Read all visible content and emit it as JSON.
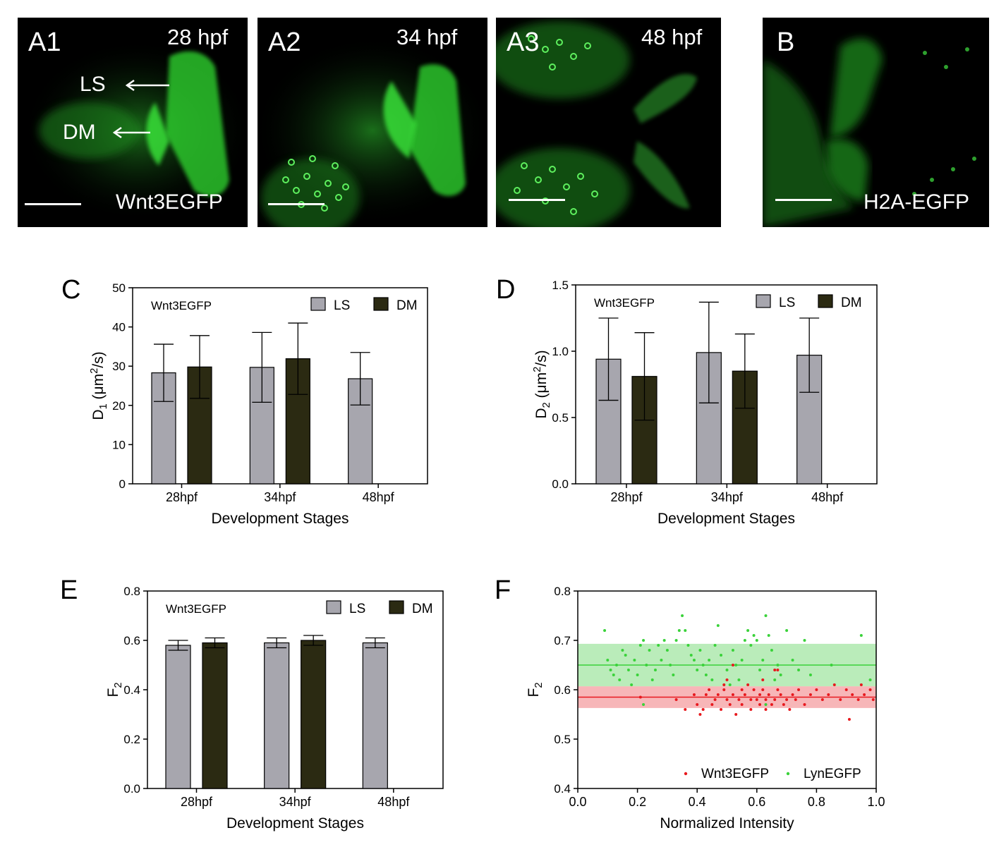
{
  "images": [
    {
      "label": "A1",
      "stage": "28 hpf",
      "marker": "Wnt3EGFP",
      "ls": "LS",
      "dm": "DM"
    },
    {
      "label": "A2",
      "stage": "34 hpf"
    },
    {
      "label": "A3",
      "stage": "48 hpf"
    },
    {
      "label": "B",
      "marker": "H2A-EGFP"
    }
  ],
  "colors": {
    "ls_bar": "#A7A6AE",
    "dm_bar": "#2B2A12",
    "wnt3": "#E8191E",
    "lyn": "#3AD23A",
    "fluorescence": "#2CC82C"
  },
  "chart_data": [
    {
      "panel": "C",
      "type": "bar",
      "inset_label": "Wnt3EGFP",
      "categories": [
        "28hpf",
        "34hpf",
        "48hpf"
      ],
      "series": [
        {
          "name": "LS",
          "values": [
            28.3,
            29.7,
            26.8
          ],
          "errors": [
            7.3,
            8.9,
            6.7
          ]
        },
        {
          "name": "DM",
          "values": [
            29.8,
            31.9,
            null
          ],
          "errors": [
            8.0,
            9.1,
            null
          ]
        }
      ],
      "xlabel": "Development Stages",
      "ylabel": {
        "base": "D",
        "sub": "1",
        "rest": " (μm",
        "sup": "2",
        "end": "/s)"
      },
      "ylim": [
        0,
        50
      ],
      "yticks": [
        "0",
        "10",
        "20",
        "30",
        "40",
        "50"
      ],
      "legend": "top-right"
    },
    {
      "panel": "D",
      "type": "bar",
      "inset_label": "Wnt3EGFP",
      "categories": [
        "28hpf",
        "34hpf",
        "48hpf"
      ],
      "series": [
        {
          "name": "LS",
          "values": [
            0.94,
            0.99,
            0.97
          ],
          "errors": [
            0.31,
            0.38,
            0.28
          ]
        },
        {
          "name": "DM",
          "values": [
            0.81,
            0.85,
            null
          ],
          "errors": [
            0.33,
            0.28,
            null
          ]
        }
      ],
      "xlabel": "Development Stages",
      "ylabel": {
        "base": "D",
        "sub": "2",
        "rest": " (μm",
        "sup": "2",
        "end": "/s)"
      },
      "ylim": [
        0,
        1.5
      ],
      "yticks": [
        "0.0",
        "0.5",
        "1.0",
        "1.5"
      ],
      "legend": "top-right"
    },
    {
      "panel": "E",
      "type": "bar",
      "inset_label": "Wnt3EGFP",
      "categories": [
        "28hpf",
        "34hpf",
        "48hpf"
      ],
      "series": [
        {
          "name": "LS",
          "values": [
            0.58,
            0.59,
            0.59
          ],
          "errors": [
            0.02,
            0.02,
            0.02
          ]
        },
        {
          "name": "DM",
          "values": [
            0.59,
            0.6,
            null
          ],
          "errors": [
            0.02,
            0.02,
            null
          ]
        }
      ],
      "xlabel": "Development Stages",
      "ylabel": {
        "base": "F",
        "sub": "2"
      },
      "ylim": [
        0,
        0.8
      ],
      "yticks": [
        "0.0",
        "0.2",
        "0.4",
        "0.6",
        "0.8"
      ],
      "legend": "top-right"
    },
    {
      "panel": "F",
      "type": "scatter",
      "xlabel": "Normalized Intensity",
      "ylabel": {
        "base": "F",
        "sub": "2"
      },
      "xlim": [
        0,
        1
      ],
      "ylim": [
        0.4,
        0.8
      ],
      "xticks": [
        "0.0",
        "0.2",
        "0.4",
        "0.6",
        "0.8",
        "1.0"
      ],
      "yticks": [
        "0.4",
        "0.5",
        "0.6",
        "0.7",
        "0.8"
      ],
      "series": [
        {
          "name": "Wnt3EGFP",
          "mean": 0.585,
          "band": [
            0.563,
            0.607
          ],
          "points": [
            [
              0.21,
              0.585
            ],
            [
              0.33,
              0.58
            ],
            [
              0.36,
              0.56
            ],
            [
              0.39,
              0.59
            ],
            [
              0.4,
              0.57
            ],
            [
              0.41,
              0.55
            ],
            [
              0.42,
              0.56
            ],
            [
              0.43,
              0.59
            ],
            [
              0.44,
              0.6
            ],
            [
              0.45,
              0.57
            ],
            [
              0.46,
              0.58
            ],
            [
              0.47,
              0.59
            ],
            [
              0.48,
              0.56
            ],
            [
              0.49,
              0.6
            ],
            [
              0.5,
              0.62
            ],
            [
              0.5,
              0.58
            ],
            [
              0.51,
              0.57
            ],
            [
              0.52,
              0.59
            ],
            [
              0.53,
              0.55
            ],
            [
              0.54,
              0.58
            ],
            [
              0.55,
              0.6
            ],
            [
              0.55,
              0.57
            ],
            [
              0.56,
              0.59
            ],
            [
              0.57,
              0.61
            ],
            [
              0.58,
              0.58
            ],
            [
              0.58,
              0.56
            ],
            [
              0.59,
              0.6
            ],
            [
              0.6,
              0.58
            ],
            [
              0.61,
              0.59
            ],
            [
              0.61,
              0.57
            ],
            [
              0.62,
              0.6
            ],
            [
              0.63,
              0.58
            ],
            [
              0.63,
              0.56
            ],
            [
              0.64,
              0.59
            ],
            [
              0.65,
              0.57
            ],
            [
              0.66,
              0.58
            ],
            [
              0.66,
              0.64
            ],
            [
              0.67,
              0.6
            ],
            [
              0.68,
              0.59
            ],
            [
              0.69,
              0.57
            ],
            [
              0.7,
              0.58
            ],
            [
              0.71,
              0.56
            ],
            [
              0.72,
              0.59
            ],
            [
              0.73,
              0.58
            ],
            [
              0.74,
              0.6
            ],
            [
              0.76,
              0.57
            ],
            [
              0.78,
              0.59
            ],
            [
              0.8,
              0.6
            ],
            [
              0.82,
              0.58
            ],
            [
              0.84,
              0.59
            ],
            [
              0.86,
              0.61
            ],
            [
              0.88,
              0.58
            ],
            [
              0.9,
              0.6
            ],
            [
              0.91,
              0.54
            ],
            [
              0.92,
              0.59
            ],
            [
              0.94,
              0.58
            ],
            [
              0.95,
              0.61
            ],
            [
              0.96,
              0.59
            ],
            [
              0.98,
              0.6
            ],
            [
              0.99,
              0.58
            ],
            [
              0.52,
              0.65
            ],
            [
              0.49,
              0.61
            ],
            [
              0.67,
              0.64
            ],
            [
              0.62,
              0.62
            ]
          ]
        },
        {
          "name": "LynEGFP",
          "mean": 0.65,
          "band": [
            0.607,
            0.693
          ],
          "points": [
            [
              0.09,
              0.72
            ],
            [
              0.1,
              0.66
            ],
            [
              0.11,
              0.64
            ],
            [
              0.12,
              0.63
            ],
            [
              0.13,
              0.65
            ],
            [
              0.14,
              0.62
            ],
            [
              0.15,
              0.68
            ],
            [
              0.16,
              0.67
            ],
            [
              0.17,
              0.64
            ],
            [
              0.18,
              0.61
            ],
            [
              0.19,
              0.66
            ],
            [
              0.2,
              0.63
            ],
            [
              0.21,
              0.69
            ],
            [
              0.22,
              0.7
            ],
            [
              0.23,
              0.65
            ],
            [
              0.24,
              0.68
            ],
            [
              0.25,
              0.62
            ],
            [
              0.26,
              0.64
            ],
            [
              0.27,
              0.69
            ],
            [
              0.28,
              0.66
            ],
            [
              0.29,
              0.7
            ],
            [
              0.3,
              0.68
            ],
            [
              0.31,
              0.65
            ],
            [
              0.32,
              0.63
            ],
            [
              0.33,
              0.7
            ],
            [
              0.34,
              0.72
            ],
            [
              0.35,
              0.75
            ],
            [
              0.36,
              0.72
            ],
            [
              0.37,
              0.69
            ],
            [
              0.38,
              0.67
            ],
            [
              0.39,
              0.66
            ],
            [
              0.4,
              0.64
            ],
            [
              0.41,
              0.68
            ],
            [
              0.42,
              0.65
            ],
            [
              0.43,
              0.63
            ],
            [
              0.44,
              0.66
            ],
            [
              0.45,
              0.62
            ],
            [
              0.46,
              0.69
            ],
            [
              0.47,
              0.73
            ],
            [
              0.48,
              0.67
            ],
            [
              0.5,
              0.64
            ],
            [
              0.51,
              0.61
            ],
            [
              0.52,
              0.68
            ],
            [
              0.53,
              0.65
            ],
            [
              0.54,
              0.62
            ],
            [
              0.55,
              0.66
            ],
            [
              0.56,
              0.7
            ],
            [
              0.57,
              0.72
            ],
            [
              0.58,
              0.69
            ],
            [
              0.59,
              0.71
            ],
            [
              0.6,
              0.7
            ],
            [
              0.61,
              0.64
            ],
            [
              0.62,
              0.66
            ],
            [
              0.63,
              0.75
            ],
            [
              0.64,
              0.71
            ],
            [
              0.65,
              0.68
            ],
            [
              0.66,
              0.62
            ],
            [
              0.67,
              0.65
            ],
            [
              0.68,
              0.63
            ],
            [
              0.7,
              0.72
            ],
            [
              0.72,
              0.66
            ],
            [
              0.74,
              0.64
            ],
            [
              0.76,
              0.7
            ],
            [
              0.78,
              0.63
            ],
            [
              0.85,
              0.65
            ],
            [
              0.95,
              0.71
            ],
            [
              0.98,
              0.62
            ],
            [
              0.63,
              0.57
            ],
            [
              0.22,
              0.57
            ]
          ]
        }
      ],
      "legend": "bottom-right"
    }
  ]
}
